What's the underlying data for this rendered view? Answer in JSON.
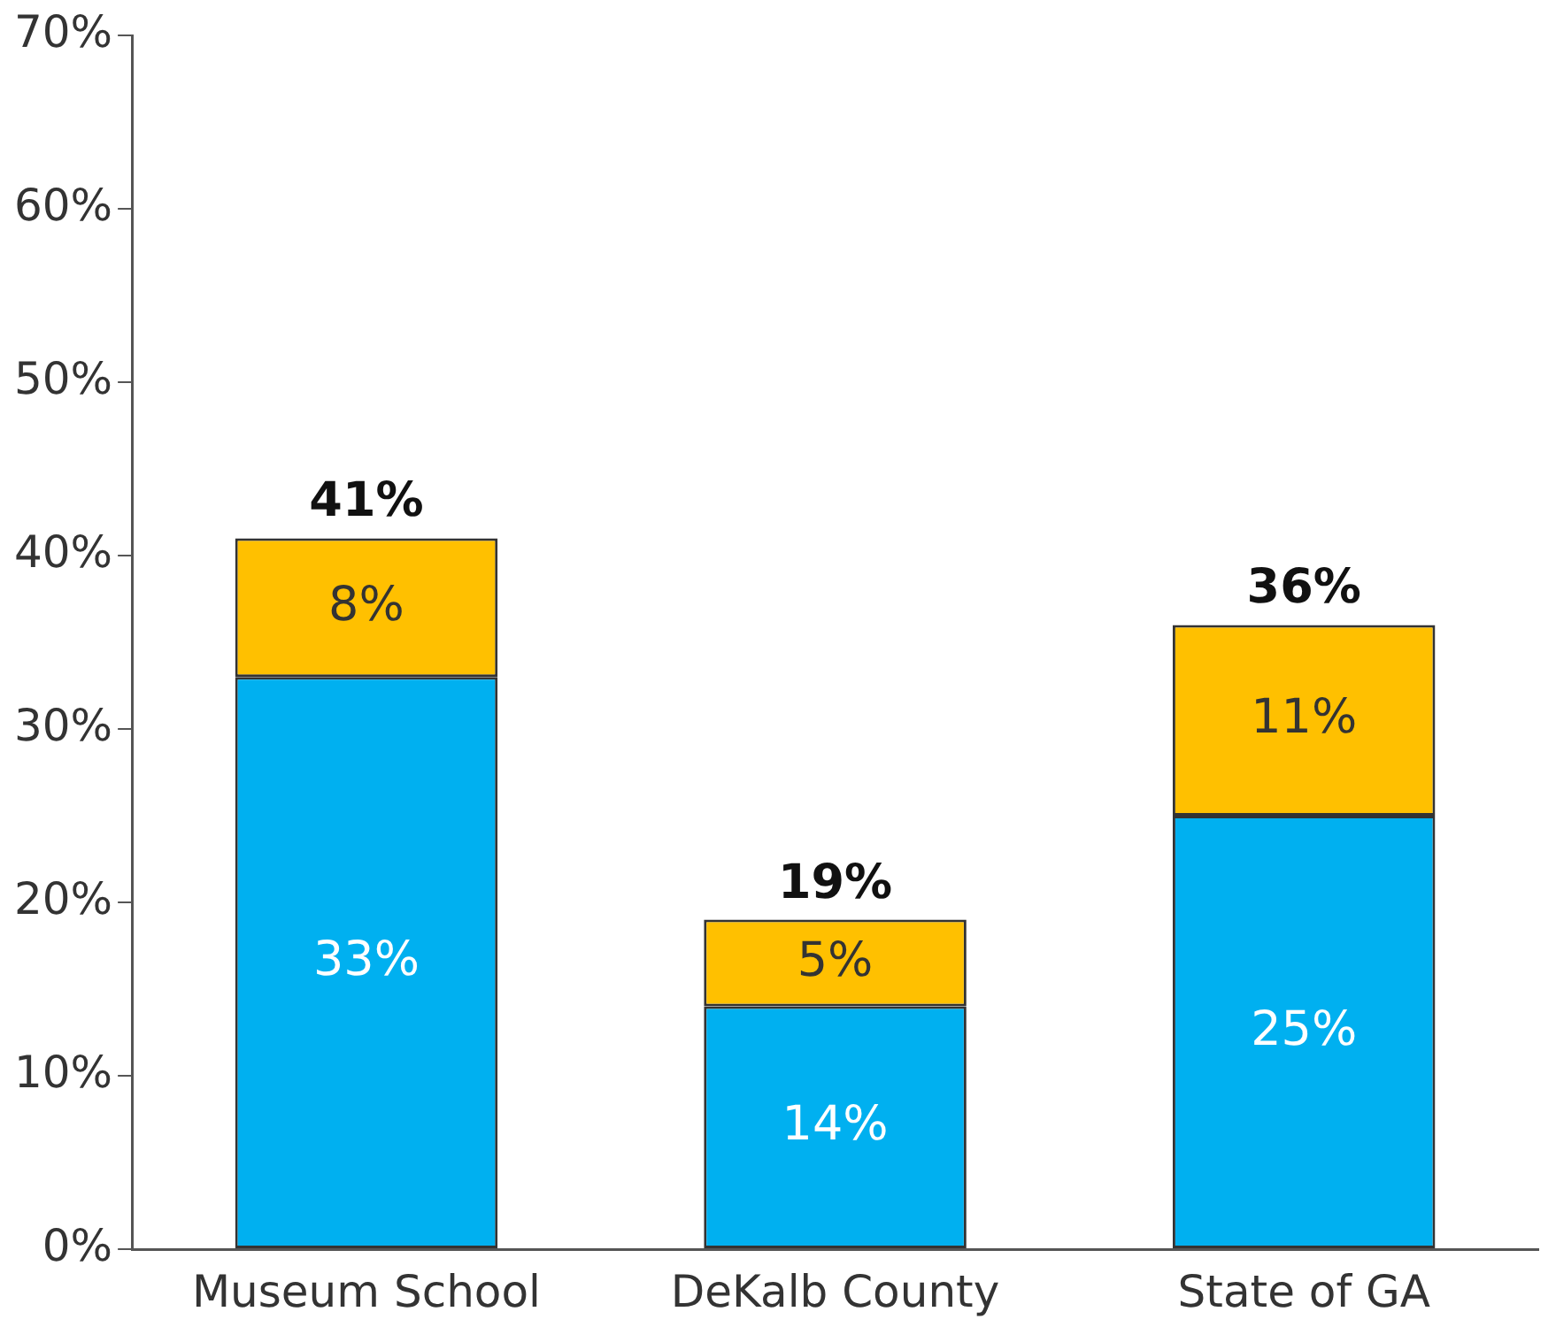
{
  "chart_data": {
    "type": "bar",
    "stacked": true,
    "categories": [
      "Museum School",
      "DeKalb County",
      "State of GA"
    ],
    "series": [
      {
        "color": "#00b0f0",
        "values": [
          33,
          14,
          25
        ],
        "value_labels": [
          "33%",
          "14%",
          "25%"
        ]
      },
      {
        "color": "#ffc000",
        "values": [
          8,
          5,
          11
        ],
        "value_labels": [
          "8%",
          "5%",
          "11%"
        ]
      }
    ],
    "totals": [
      "41%",
      "19%",
      "36%"
    ],
    "ylim": [
      0,
      70
    ],
    "yticks": [
      {
        "value": 0,
        "label": "0%"
      },
      {
        "value": 10,
        "label": "10%"
      },
      {
        "value": 20,
        "label": "20%"
      },
      {
        "value": 30,
        "label": "30%"
      },
      {
        "value": 40,
        "label": "40%"
      },
      {
        "value": 50,
        "label": "50%"
      },
      {
        "value": 60,
        "label": "60%"
      },
      {
        "value": 70,
        "label": "70%"
      }
    ],
    "grid": false,
    "legend": false
  }
}
